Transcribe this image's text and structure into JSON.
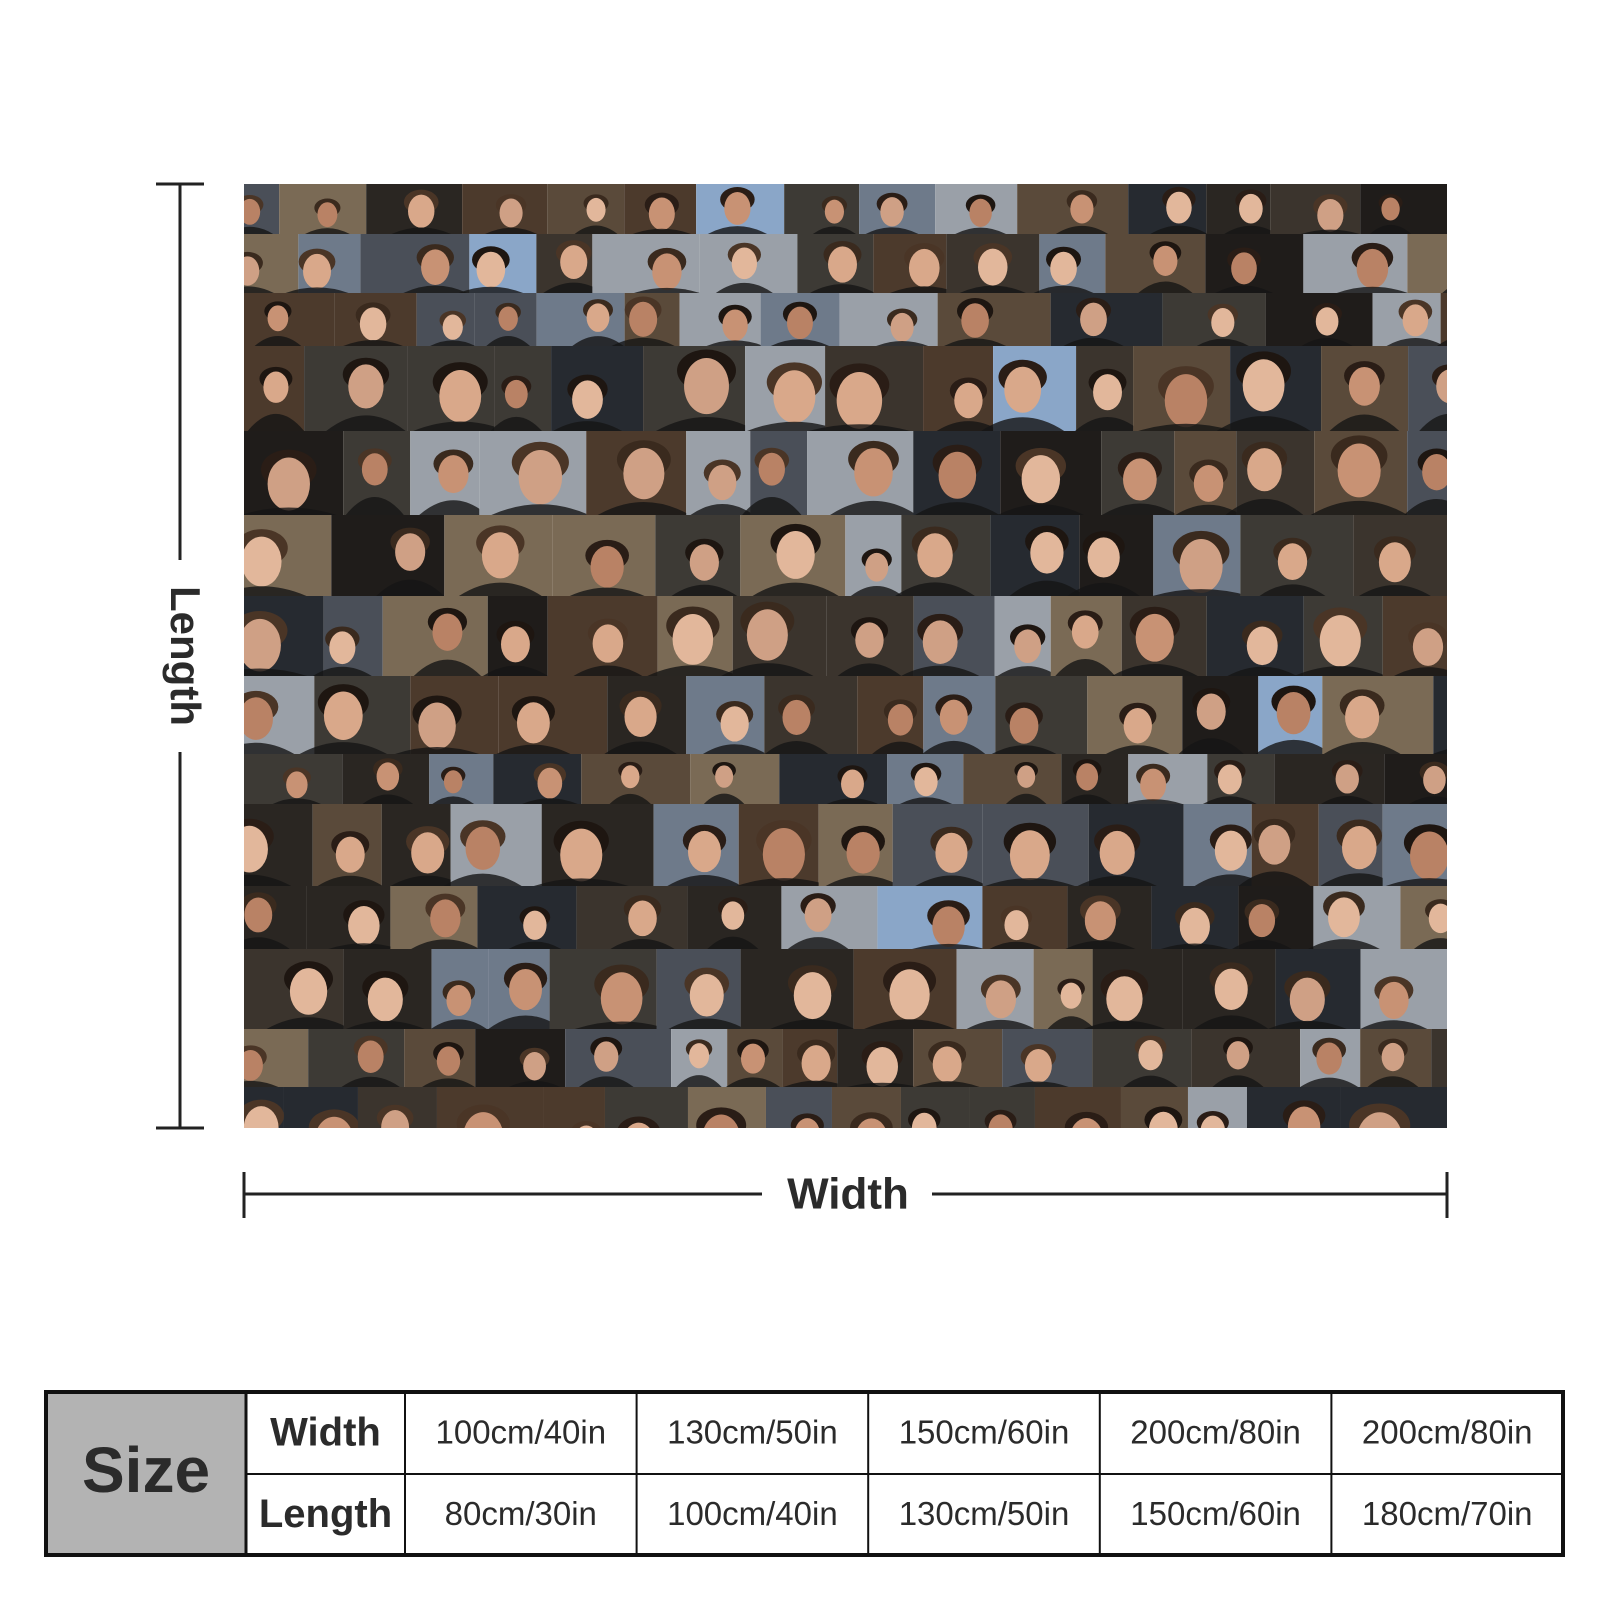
{
  "dimension_labels": {
    "length": "Length",
    "width": "Width"
  },
  "size_table": {
    "title": "Size",
    "rows": [
      {
        "label": "Width",
        "values": [
          "100cm/40in",
          "130cm/50in",
          "150cm/60in",
          "200cm/80in",
          "200cm/80in"
        ]
      },
      {
        "label": "Length",
        "values": [
          "80cm/30in",
          "100cm/40in",
          "130cm/50in",
          "150cm/60in",
          "180cm/70in"
        ]
      }
    ]
  }
}
